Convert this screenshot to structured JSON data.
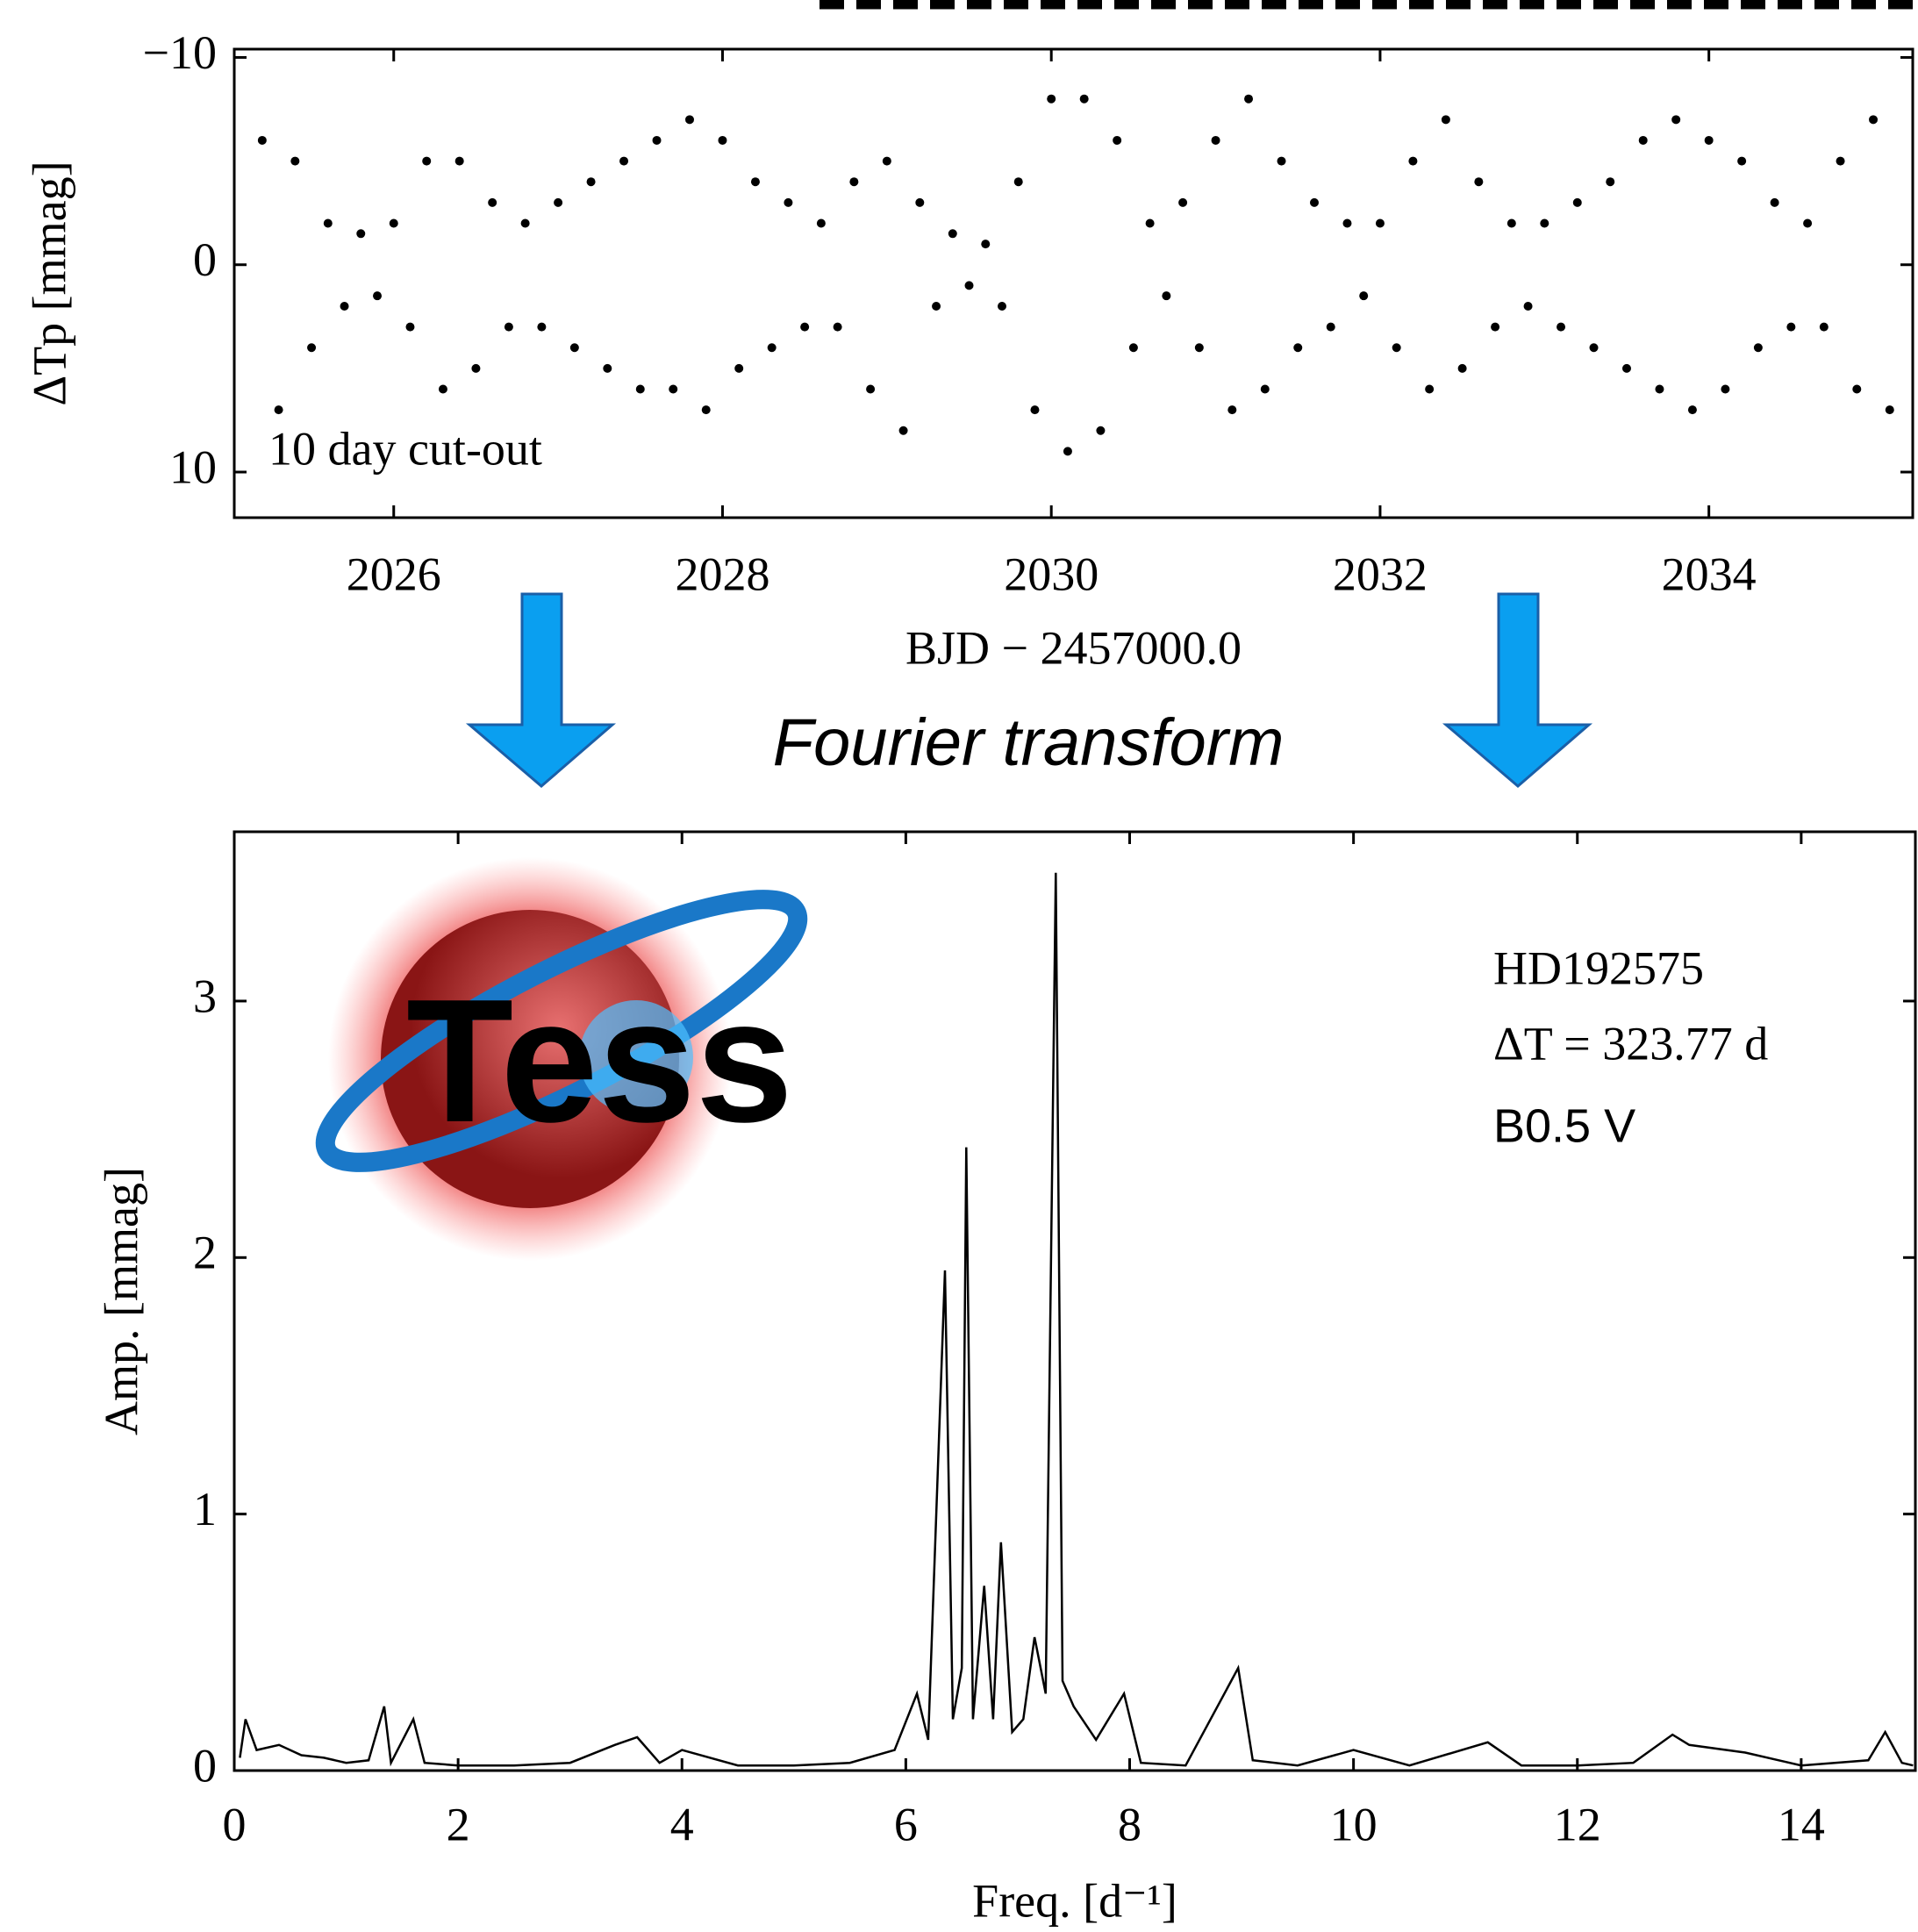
{
  "chart_data": [
    {
      "type": "scatter",
      "xlabel": "BJD − 2457000.0",
      "ylabel": "ΔTp [mmag]",
      "annotations": [
        "10 day cut-out"
      ],
      "color": "#000000",
      "xlim": [
        2025.03,
        2035.24
      ],
      "xticks": [
        2026,
        2028,
        2030,
        2032,
        2034
      ],
      "ylim": [
        -10.4,
        12.2
      ],
      "y_inverted": true,
      "yticks": [
        {
          "value": -10,
          "label": "−10"
        },
        0,
        10
      ],
      "x": [
        2025.2,
        2025.3,
        2025.4,
        2025.5,
        2025.6,
        2025.7,
        2025.8,
        2025.9,
        2026.0,
        2026.1,
        2026.2,
        2026.3,
        2026.4,
        2026.5,
        2026.6,
        2026.7,
        2026.8,
        2026.9,
        2027.0,
        2027.1,
        2027.2,
        2027.3,
        2027.4,
        2027.5,
        2027.6,
        2027.7,
        2027.8,
        2027.9,
        2028.0,
        2028.1,
        2028.2,
        2028.3,
        2028.4,
        2028.5,
        2028.6,
        2028.7,
        2028.8,
        2028.9,
        2029.0,
        2029.1,
        2029.2,
        2029.3,
        2029.4,
        2029.5,
        2029.6,
        2029.7,
        2029.8,
        2029.9,
        2030.0,
        2030.1,
        2030.2,
        2030.3,
        2030.4,
        2030.5,
        2030.6,
        2030.7,
        2030.8,
        2030.9,
        2031.0,
        2031.1,
        2031.2,
        2031.3,
        2031.4,
        2031.5,
        2031.6,
        2031.7,
        2031.8,
        2031.9,
        2032.0,
        2032.1,
        2032.2,
        2032.3,
        2032.4,
        2032.5,
        2032.6,
        2032.7,
        2032.8,
        2032.9,
        2033.0,
        2033.1,
        2033.2,
        2033.3,
        2033.4,
        2033.5,
        2033.6,
        2033.7,
        2033.8,
        2033.9,
        2034.0,
        2034.1,
        2034.2,
        2034.3,
        2034.4,
        2034.5,
        2034.6,
        2034.7,
        2034.8,
        2034.9,
        2035.0,
        2035.1
      ],
      "values": [
        -6,
        7,
        -5,
        4,
        -2,
        2,
        -1.5,
        1.5,
        -2,
        3,
        -5,
        6,
        -5,
        5,
        -3,
        3,
        -2,
        3,
        -3,
        4,
        -4,
        5,
        -5,
        6,
        -6,
        6,
        -7,
        7,
        -6,
        5,
        -4,
        4,
        -3,
        3,
        -2,
        3,
        -4,
        6,
        -5,
        8,
        -3,
        2,
        -1.5,
        1,
        -1,
        2,
        -4,
        7,
        -8,
        9,
        -8,
        8,
        -6,
        4,
        -2,
        1.5,
        -3,
        4,
        -6,
        7,
        -8,
        6,
        -5,
        4,
        -3,
        3,
        -2,
        1.5,
        -2,
        4,
        -5,
        6,
        -7,
        5,
        -4,
        3,
        -2,
        2,
        -2,
        3,
        -3,
        4,
        -4,
        5,
        -6,
        6,
        -7,
        7,
        -6,
        6,
        -5,
        4,
        -3,
        3,
        -2,
        3,
        -5,
        6,
        -7,
        7
      ]
    },
    {
      "type": "line",
      "title": "Fourier transform",
      "xlabel": "Freq. [d⁻¹]",
      "ylabel": "Amp. [mmag]",
      "annotations": [
        "HD192575",
        "ΔT = 323.77 d",
        "B0.5 V"
      ],
      "logo_text": "Tess",
      "color": "#000000",
      "xlim": [
        0,
        15.02
      ],
      "xticks": [
        0,
        2,
        4,
        6,
        8,
        10,
        12,
        14
      ],
      "ylim": [
        0,
        3.66
      ],
      "yticks": [
        0,
        1,
        2,
        3
      ],
      "x": [
        0.05,
        0.1,
        0.2,
        0.4,
        0.6,
        0.8,
        1.0,
        1.2,
        1.34,
        1.4,
        1.6,
        1.7,
        2.0,
        2.5,
        3.0,
        3.4,
        3.6,
        3.8,
        4.0,
        4.5,
        5.0,
        5.5,
        5.9,
        6.1,
        6.2,
        6.35,
        6.42,
        6.5,
        6.54,
        6.6,
        6.7,
        6.78,
        6.85,
        6.95,
        7.05,
        7.15,
        7.25,
        7.34,
        7.4,
        7.5,
        7.7,
        7.95,
        8.1,
        8.5,
        8.97,
        9.1,
        9.5,
        10.0,
        10.5,
        11.2,
        11.5,
        12.0,
        12.5,
        12.85,
        13.0,
        13.5,
        14.0,
        14.6,
        14.75,
        14.9,
        15.0
      ],
      "values": [
        0.05,
        0.2,
        0.08,
        0.1,
        0.06,
        0.05,
        0.03,
        0.04,
        0.25,
        0.03,
        0.2,
        0.03,
        0.02,
        0.02,
        0.03,
        0.1,
        0.13,
        0.03,
        0.08,
        0.02,
        0.02,
        0.03,
        0.08,
        0.3,
        0.12,
        1.95,
        0.2,
        0.4,
        2.43,
        0.2,
        0.72,
        0.2,
        0.89,
        0.15,
        0.2,
        0.52,
        0.3,
        3.5,
        0.35,
        0.25,
        0.12,
        0.3,
        0.03,
        0.02,
        0.4,
        0.04,
        0.02,
        0.08,
        0.02,
        0.11,
        0.02,
        0.02,
        0.03,
        0.14,
        0.1,
        0.07,
        0.02,
        0.04,
        0.15,
        0.03,
        0.02
      ]
    }
  ]
}
